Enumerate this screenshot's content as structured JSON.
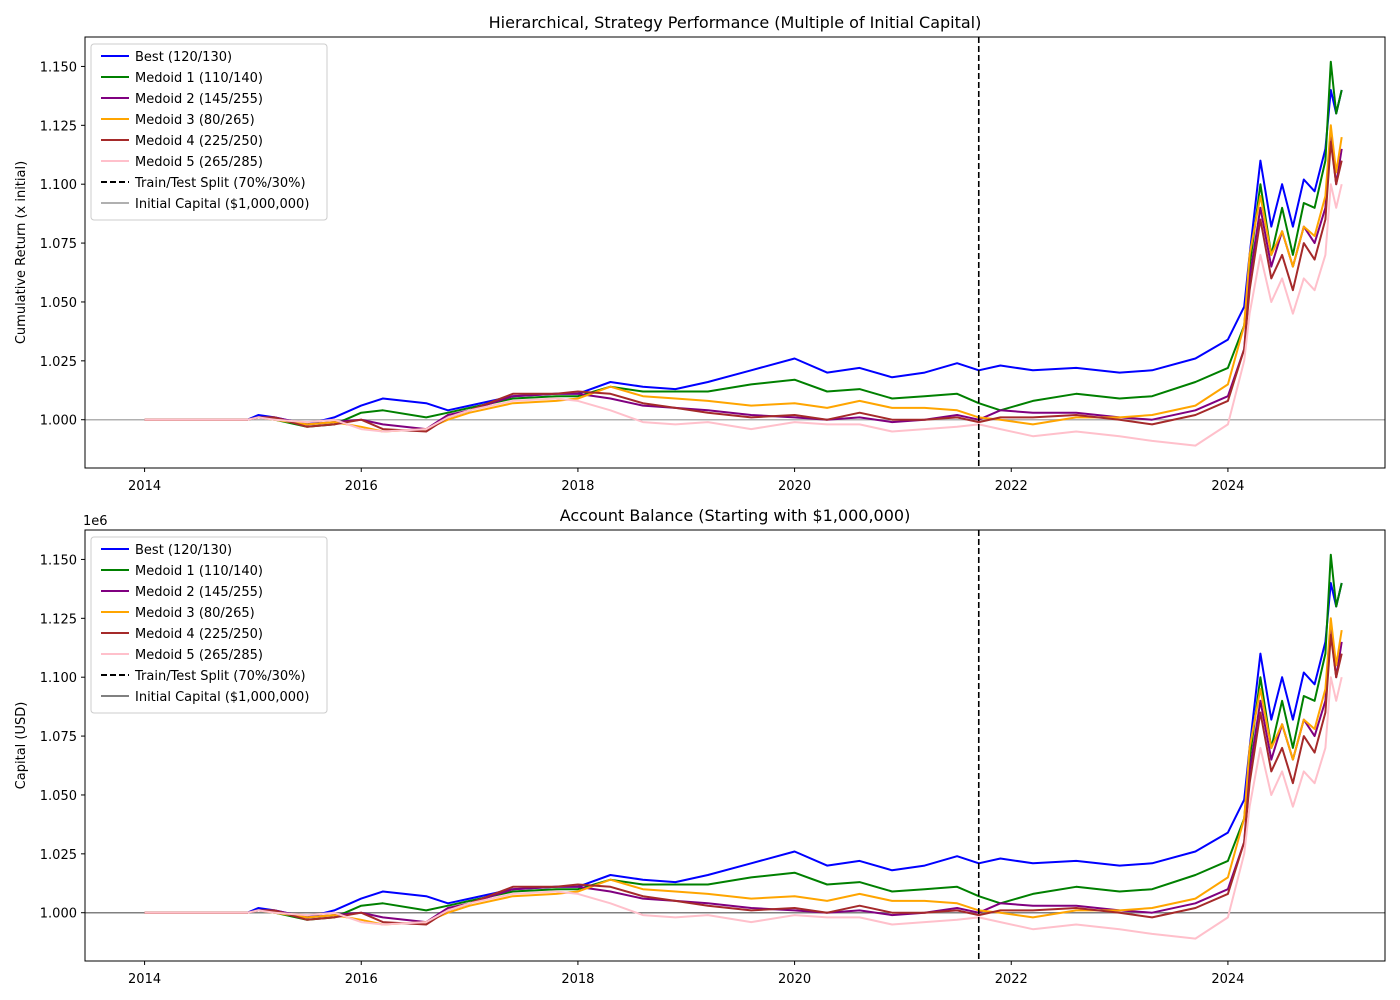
{
  "chart_data": [
    {
      "type": "line",
      "title": "Hierarchical, Strategy Performance (Multiple of Initial Capital)",
      "xlabel": "",
      "ylabel": "Cumulative Return (x initial)",
      "xlim": [
        2013.45,
        2025.45
      ],
      "ylim": [
        0.9795,
        1.1625
      ],
      "x_ticks": [
        2014,
        2016,
        2018,
        2020,
        2022,
        2024
      ],
      "x_tick_labels": [
        "2014",
        "2016",
        "2018",
        "2020",
        "2022",
        "2024"
      ],
      "y_ticks": [
        1.0,
        1.025,
        1.05,
        1.075,
        1.1,
        1.125,
        1.15
      ],
      "y_tick_labels": [
        "1.000",
        "1.025",
        "1.050",
        "1.075",
        "1.100",
        "1.125",
        "1.150"
      ],
      "offset_text": "",
      "grid": false,
      "legend_position": "top-left",
      "split_line": {
        "x": 2021.7,
        "label": "Train/Test Split (70%/30%)"
      },
      "baseline": {
        "y": 1.0,
        "label": "Initial Capital ($1,000,000)",
        "color": "#b0b0b0"
      }
    },
    {
      "type": "line",
      "title": "Account Balance (Starting with $1,000,000)",
      "xlabel": "",
      "ylabel": "Capital (USD)",
      "xlim": [
        2013.45,
        2025.45
      ],
      "ylim": [
        0.9795,
        1.1625
      ],
      "x_ticks": [
        2014,
        2016,
        2018,
        2020,
        2022,
        2024
      ],
      "x_tick_labels": [
        "2014",
        "2016",
        "2018",
        "2020",
        "2022",
        "2024"
      ],
      "y_ticks": [
        1.0,
        1.025,
        1.05,
        1.075,
        1.1,
        1.125,
        1.15
      ],
      "y_tick_labels": [
        "1.000",
        "1.025",
        "1.050",
        "1.075",
        "1.100",
        "1.125",
        "1.150"
      ],
      "offset_text": "1e6",
      "grid": false,
      "legend_position": "top-left",
      "split_line": {
        "x": 2021.7,
        "label": "Train/Test Split (70%/30%)"
      },
      "baseline": {
        "y": 1.0,
        "label": "Initial Capital ($1,000,000)",
        "color": "#808080"
      }
    }
  ],
  "series": [
    {
      "name": "Best (120/130)",
      "color": "#0000ff",
      "x": [
        2014.0,
        2014.95,
        2015.05,
        2015.2,
        2015.5,
        2015.75,
        2016.0,
        2016.2,
        2016.6,
        2016.8,
        2017.0,
        2017.4,
        2017.8,
        2018.0,
        2018.3,
        2018.6,
        2018.9,
        2019.2,
        2019.6,
        2020.0,
        2020.3,
        2020.6,
        2020.9,
        2021.2,
        2021.5,
        2021.7,
        2021.9,
        2022.2,
        2022.6,
        2023.0,
        2023.3,
        2023.7,
        2024.0,
        2024.15,
        2024.2,
        2024.3,
        2024.4,
        2024.5,
        2024.6,
        2024.7,
        2024.8,
        2024.9,
        2024.95,
        2025.0,
        2025.05
      ],
      "values": [
        1.0,
        1.0,
        1.002,
        1.001,
        0.998,
        1.001,
        1.006,
        1.009,
        1.007,
        1.004,
        1.006,
        1.01,
        1.011,
        1.011,
        1.016,
        1.014,
        1.013,
        1.016,
        1.021,
        1.026,
        1.02,
        1.022,
        1.018,
        1.02,
        1.024,
        1.021,
        1.023,
        1.021,
        1.022,
        1.02,
        1.021,
        1.026,
        1.034,
        1.048,
        1.07,
        1.11,
        1.082,
        1.1,
        1.082,
        1.102,
        1.097,
        1.115,
        1.14,
        1.13,
        1.14
      ]
    },
    {
      "name": "Medoid 1 (110/140)",
      "color": "#008000",
      "x": [
        2014.0,
        2014.95,
        2015.05,
        2015.2,
        2015.5,
        2015.75,
        2016.0,
        2016.2,
        2016.6,
        2016.8,
        2017.0,
        2017.4,
        2017.8,
        2018.0,
        2018.3,
        2018.6,
        2018.9,
        2019.2,
        2019.6,
        2020.0,
        2020.3,
        2020.6,
        2020.9,
        2021.2,
        2021.5,
        2021.7,
        2021.9,
        2022.2,
        2022.6,
        2023.0,
        2023.3,
        2023.7,
        2024.0,
        2024.15,
        2024.2,
        2024.3,
        2024.4,
        2024.5,
        2024.6,
        2024.7,
        2024.8,
        2024.9,
        2024.95,
        2025.0,
        2025.05
      ],
      "values": [
        1.0,
        1.0,
        1.001,
        1.0,
        0.997,
        0.998,
        1.003,
        1.004,
        1.001,
        1.003,
        1.005,
        1.009,
        1.01,
        1.01,
        1.014,
        1.012,
        1.012,
        1.012,
        1.015,
        1.017,
        1.012,
        1.013,
        1.009,
        1.01,
        1.011,
        1.007,
        1.004,
        1.008,
        1.011,
        1.009,
        1.01,
        1.016,
        1.022,
        1.04,
        1.065,
        1.1,
        1.07,
        1.09,
        1.07,
        1.092,
        1.09,
        1.11,
        1.152,
        1.13,
        1.14
      ]
    },
    {
      "name": "Medoid 2 (145/255)",
      "color": "#800080",
      "x": [
        2014.0,
        2014.95,
        2015.05,
        2015.2,
        2015.5,
        2015.75,
        2016.0,
        2016.2,
        2016.6,
        2016.8,
        2017.0,
        2017.4,
        2017.8,
        2018.0,
        2018.3,
        2018.6,
        2018.9,
        2019.2,
        2019.6,
        2020.0,
        2020.3,
        2020.6,
        2020.9,
        2021.2,
        2021.5,
        2021.7,
        2021.9,
        2022.2,
        2022.6,
        2023.0,
        2023.3,
        2023.7,
        2024.0,
        2024.15,
        2024.2,
        2024.3,
        2024.4,
        2024.5,
        2024.6,
        2024.7,
        2024.8,
        2024.9,
        2024.95,
        2025.0,
        2025.05
      ],
      "values": [
        1.0,
        1.0,
        1.001,
        1.001,
        0.998,
        0.999,
        1.0,
        0.998,
        0.996,
        1.002,
        1.004,
        1.01,
        1.011,
        1.011,
        1.009,
        1.006,
        1.005,
        1.004,
        1.002,
        1.001,
        1.0,
        1.001,
        0.999,
        1.0,
        1.002,
        1.0,
        1.004,
        1.003,
        1.003,
        1.001,
        1.0,
        1.004,
        1.01,
        1.03,
        1.06,
        1.09,
        1.065,
        1.08,
        1.065,
        1.082,
        1.075,
        1.09,
        1.12,
        1.1,
        1.115
      ]
    },
    {
      "name": "Medoid 3 (80/265)",
      "color": "#ffa500",
      "x": [
        2014.0,
        2014.95,
        2015.05,
        2015.2,
        2015.5,
        2015.75,
        2016.0,
        2016.2,
        2016.6,
        2016.8,
        2017.0,
        2017.4,
        2017.8,
        2018.0,
        2018.3,
        2018.6,
        2018.9,
        2019.2,
        2019.6,
        2020.0,
        2020.3,
        2020.6,
        2020.9,
        2021.2,
        2021.5,
        2021.7,
        2021.9,
        2022.2,
        2022.6,
        2023.0,
        2023.3,
        2023.7,
        2024.0,
        2024.15,
        2024.2,
        2024.3,
        2024.4,
        2024.5,
        2024.6,
        2024.7,
        2024.8,
        2024.9,
        2024.95,
        2025.0,
        2025.05
      ],
      "values": [
        1.0,
        1.0,
        1.001,
        1.0,
        0.998,
        0.999,
        0.997,
        0.995,
        0.996,
        1.0,
        1.003,
        1.007,
        1.008,
        1.009,
        1.014,
        1.01,
        1.009,
        1.008,
        1.006,
        1.007,
        1.005,
        1.008,
        1.005,
        1.005,
        1.004,
        1.001,
        1.0,
        0.998,
        1.001,
        1.001,
        1.002,
        1.006,
        1.015,
        1.04,
        1.07,
        1.095,
        1.07,
        1.08,
        1.065,
        1.082,
        1.078,
        1.095,
        1.125,
        1.105,
        1.12
      ]
    },
    {
      "name": "Medoid 4 (225/250)",
      "color": "#a52a2a",
      "x": [
        2014.0,
        2014.95,
        2015.05,
        2015.2,
        2015.5,
        2015.75,
        2016.0,
        2016.2,
        2016.6,
        2016.8,
        2017.0,
        2017.4,
        2017.8,
        2018.0,
        2018.3,
        2018.6,
        2018.9,
        2019.2,
        2019.6,
        2020.0,
        2020.3,
        2020.6,
        2020.9,
        2021.2,
        2021.5,
        2021.7,
        2021.9,
        2022.2,
        2022.6,
        2023.0,
        2023.3,
        2023.7,
        2024.0,
        2024.15,
        2024.2,
        2024.3,
        2024.4,
        2024.5,
        2024.6,
        2024.7,
        2024.8,
        2024.9,
        2024.95,
        2025.0,
        2025.05
      ],
      "values": [
        1.0,
        1.0,
        1.001,
        1.001,
        0.997,
        0.998,
        1.0,
        0.996,
        0.995,
        1.001,
        1.004,
        1.011,
        1.011,
        1.012,
        1.011,
        1.007,
        1.005,
        1.003,
        1.001,
        1.002,
        1.0,
        1.003,
        1.0,
        1.0,
        1.001,
        0.999,
        1.001,
        1.001,
        1.002,
        1.0,
        0.998,
        1.002,
        1.008,
        1.03,
        1.055,
        1.085,
        1.06,
        1.07,
        1.055,
        1.075,
        1.068,
        1.085,
        1.118,
        1.1,
        1.11
      ]
    },
    {
      "name": "Medoid 5 (265/285)",
      "color": "#ffc0cb",
      "x": [
        2014.0,
        2014.95,
        2015.05,
        2015.2,
        2015.5,
        2015.75,
        2016.0,
        2016.2,
        2016.6,
        2016.8,
        2017.0,
        2017.4,
        2017.8,
        2018.0,
        2018.3,
        2018.6,
        2018.9,
        2019.2,
        2019.6,
        2020.0,
        2020.3,
        2020.6,
        2020.9,
        2021.2,
        2021.5,
        2021.7,
        2021.9,
        2022.2,
        2022.6,
        2023.0,
        2023.3,
        2023.7,
        2024.0,
        2024.15,
        2024.2,
        2024.3,
        2024.4,
        2024.5,
        2024.6,
        2024.7,
        2024.8,
        2024.9,
        2024.95,
        2025.0,
        2025.05
      ],
      "values": [
        1.0,
        1.0,
        1.001,
        1.0,
        0.999,
        1.0,
        0.996,
        0.995,
        0.996,
        1.001,
        1.004,
        1.008,
        1.009,
        1.008,
        1.004,
        0.999,
        0.998,
        0.999,
        0.996,
        0.999,
        0.998,
        0.998,
        0.995,
        0.996,
        0.997,
        0.998,
        0.996,
        0.993,
        0.995,
        0.993,
        0.991,
        0.989,
        0.998,
        1.025,
        1.045,
        1.07,
        1.05,
        1.06,
        1.045,
        1.06,
        1.055,
        1.07,
        1.1,
        1.09,
        1.1
      ]
    }
  ]
}
